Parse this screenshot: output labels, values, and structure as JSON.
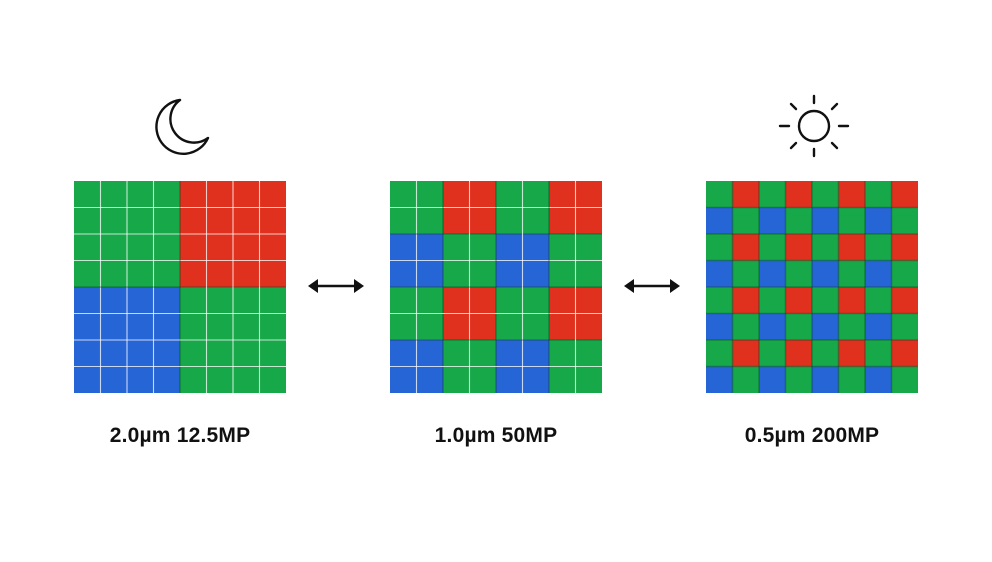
{
  "colors": {
    "green": "#17a84a",
    "red": "#e0301e",
    "blue": "#2665d6",
    "line": "#ffffff",
    "text": "#111111"
  },
  "panels": [
    {
      "label": "2.0µm 12.5MP",
      "icon": "moon-icon",
      "pattern": [
        [
          "G",
          "R"
        ],
        [
          "B",
          "G"
        ]
      ],
      "subdivisions": 4
    },
    {
      "label": "1.0µm 50MP",
      "icon": "",
      "pattern": [
        [
          "G",
          "R",
          "G",
          "R"
        ],
        [
          "B",
          "G",
          "B",
          "G"
        ],
        [
          "G",
          "R",
          "G",
          "R"
        ],
        [
          "B",
          "G",
          "B",
          "G"
        ]
      ],
      "subdivisions": 2
    },
    {
      "label": "0.5µm 200MP",
      "icon": "sun-icon",
      "pattern": [
        [
          "G",
          "R",
          "G",
          "R",
          "G",
          "R",
          "G",
          "R"
        ],
        [
          "B",
          "G",
          "B",
          "G",
          "B",
          "G",
          "B",
          "G"
        ],
        [
          "G",
          "R",
          "G",
          "R",
          "G",
          "R",
          "G",
          "R"
        ],
        [
          "B",
          "G",
          "B",
          "G",
          "B",
          "G",
          "B",
          "G"
        ],
        [
          "G",
          "R",
          "G",
          "R",
          "G",
          "R",
          "G",
          "R"
        ],
        [
          "B",
          "G",
          "B",
          "G",
          "B",
          "G",
          "B",
          "G"
        ],
        [
          "G",
          "R",
          "G",
          "R",
          "G",
          "R",
          "G",
          "R"
        ],
        [
          "B",
          "G",
          "B",
          "G",
          "B",
          "G",
          "B",
          "G"
        ]
      ],
      "subdivisions": 1
    }
  ],
  "arrows": [
    "double-arrow-icon",
    "double-arrow-icon"
  ]
}
